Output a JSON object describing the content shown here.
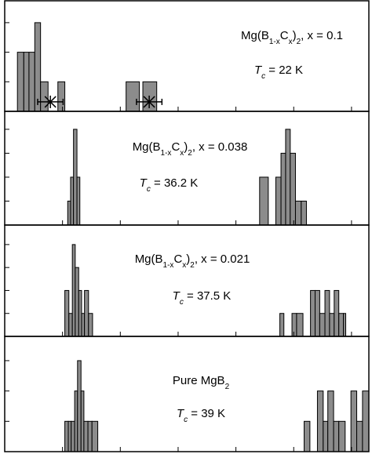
{
  "chart_data": [
    {
      "type": "histogram",
      "color": "#8c8c8c",
      "xlim": [
        0,
        6.3
      ],
      "xticks": [
        0,
        1,
        2,
        3,
        4,
        5,
        6
      ],
      "ylim": [
        0,
        3.74
      ],
      "yticks": [
        0,
        1,
        2,
        3
      ],
      "label": [
        {
          "text": "Mg(B"
        },
        {
          "text": "1-x",
          "sub": true
        },
        {
          "text": "C"
        },
        {
          "text": "x",
          "sub": true
        },
        {
          "text": ")"
        },
        {
          "text": "2",
          "sub": true
        },
        {
          "text": ",  x = 0.1"
        }
      ],
      "tc": [
        {
          "text": "T",
          "italic": true
        },
        {
          "text": "c",
          "sub": true,
          "italic": true
        },
        {
          "text": " = 22 K"
        }
      ],
      "bins": [
        0.22,
        0.33,
        0.42,
        0.52,
        0.62,
        0.75,
        0.92,
        1.04,
        2.1,
        2.33,
        2.39,
        2.63
      ],
      "counts": [
        2,
        2,
        2,
        3,
        1,
        0,
        1,
        0,
        1,
        0,
        1
      ],
      "markers": {
        "x": [
          0.79,
          2.5
        ],
        "y": [
          0.32,
          0.32
        ],
        "xerr": [
          0.22,
          0.22
        ]
      }
    },
    {
      "type": "histogram",
      "color": "#8c8c8c",
      "xlim": [
        0,
        6.3
      ],
      "xticks": [
        0,
        1,
        2,
        3,
        4,
        5,
        6
      ],
      "ylim": [
        0,
        4.75
      ],
      "yticks": [
        0,
        1,
        2,
        3,
        4
      ],
      "label": [
        {
          "text": "Mg(B"
        },
        {
          "text": "1-x",
          "sub": true
        },
        {
          "text": "C"
        },
        {
          "text": "x",
          "sub": true
        },
        {
          "text": ")"
        },
        {
          "text": "2",
          "sub": true
        },
        {
          "text": ",  x = 0.038"
        }
      ],
      "tc": [
        {
          "text": "T",
          "italic": true
        },
        {
          "text": "c",
          "sub": true,
          "italic": true
        },
        {
          "text": " = 36.2 K"
        }
      ],
      "bins": [
        1.09,
        1.14,
        1.19,
        1.25,
        1.3,
        4.41,
        4.56,
        4.69,
        4.78,
        4.86,
        4.94,
        5.03,
        5.13,
        5.22
      ],
      "counts": [
        1,
        2,
        4,
        2,
        0,
        2,
        0,
        2,
        3,
        4,
        3,
        1,
        1
      ]
    },
    {
      "type": "histogram",
      "color": "#8c8c8c",
      "xlim": [
        0,
        6.3
      ],
      "xticks": [
        0,
        1,
        2,
        3,
        4,
        5,
        6
      ],
      "ylim": [
        0,
        4.85
      ],
      "yticks": [
        0,
        1,
        2,
        3,
        4
      ],
      "label": [
        {
          "text": "Mg(B"
        },
        {
          "text": "1-x",
          "sub": true
        },
        {
          "text": "C"
        },
        {
          "text": "x",
          "sub": true
        },
        {
          "text": ")"
        },
        {
          "text": "2",
          "sub": true
        },
        {
          "text": ",  x = 0.021"
        }
      ],
      "tc": [
        {
          "text": "T",
          "italic": true
        },
        {
          "text": "c",
          "sub": true,
          "italic": true
        },
        {
          "text": " = 37.5 K"
        }
      ],
      "bins": [
        1.04,
        1.11,
        1.17,
        1.22,
        1.28,
        1.33,
        1.38,
        1.45,
        1.52,
        4.76,
        4.83,
        4.97,
        5.05,
        5.16,
        5.29,
        5.37,
        5.45,
        5.54,
        5.62,
        5.7,
        5.78,
        5.86,
        5.9
      ],
      "counts": [
        2,
        1,
        4,
        3,
        2,
        1,
        2,
        1,
        0,
        1,
        0,
        1,
        1,
        0,
        2,
        2,
        1,
        2,
        1,
        2,
        1,
        1
      ]
    },
    {
      "type": "histogram",
      "color": "#8c8c8c",
      "xlim": [
        0,
        6.3
      ],
      "xticks": [
        0,
        1,
        2,
        3,
        4,
        5,
        6
      ],
      "ylim": [
        0,
        3.8
      ],
      "yticks": [
        0,
        1,
        2,
        3
      ],
      "label": [
        {
          "text": "Pure  MgB"
        },
        {
          "text": "2",
          "sub": true
        }
      ],
      "tc": [
        {
          "text": "T",
          "italic": true
        },
        {
          "text": "c",
          "sub": true,
          "italic": true
        },
        {
          "text": " = 39 K"
        }
      ],
      "bins": [
        1.04,
        1.1,
        1.15,
        1.21,
        1.26,
        1.32,
        1.37,
        1.44,
        1.51,
        1.61,
        5.18,
        5.28,
        5.41,
        5.51,
        5.59,
        5.69,
        5.78,
        5.89,
        5.99,
        6.09,
        6.19,
        6.3
      ],
      "counts": [
        1,
        1,
        1,
        2,
        3,
        2,
        1,
        1,
        1,
        0,
        1,
        0,
        2,
        1,
        2,
        1,
        1,
        0,
        2,
        1,
        2
      ]
    }
  ]
}
